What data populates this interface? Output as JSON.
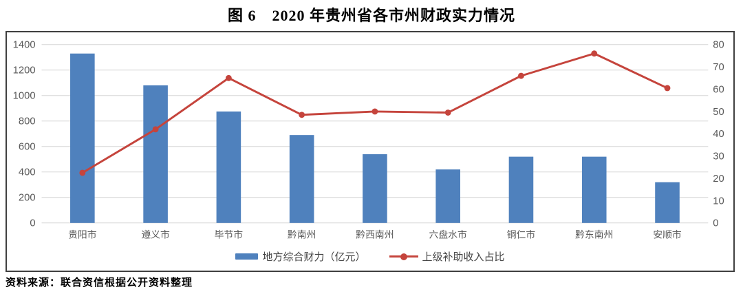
{
  "title": "图 6　2020 年贵州省各市州财政实力情况",
  "source": "资料来源：联合资信根据公开资料整理",
  "colors": {
    "bar": "#4F81BD",
    "line": "#C5443C",
    "grid": "#D6D6D6",
    "axis_text": "#595959",
    "border": "#3F3F3F"
  },
  "chart_data": {
    "type": "bar",
    "subtype": "combo-bar-line-dual-axis",
    "title": "图 6　2020 年贵州省各市州财政实力情况",
    "categories": [
      "贵阳市",
      "遵义市",
      "毕节市",
      "黔南州",
      "黔西南州",
      "六盘水市",
      "铜仁市",
      "黔东南州",
      "安顺市"
    ],
    "series": [
      {
        "name": "地方综合财力（亿元）",
        "type": "bar",
        "axis": "left",
        "color": "#4F81BD",
        "values": [
          1330,
          1080,
          875,
          690,
          540,
          420,
          520,
          520,
          320
        ]
      },
      {
        "name": "上级补助收入占比",
        "type": "line",
        "axis": "right",
        "color": "#C5443C",
        "values": [
          22.5,
          42,
          65,
          48.5,
          50,
          49.5,
          66,
          76,
          60.5
        ]
      }
    ],
    "left_axis": {
      "min": 0,
      "max": 1400,
      "step": 200
    },
    "right_axis": {
      "min": 0,
      "max": 80,
      "step": 10
    },
    "grid": true,
    "legend_position": "bottom"
  }
}
